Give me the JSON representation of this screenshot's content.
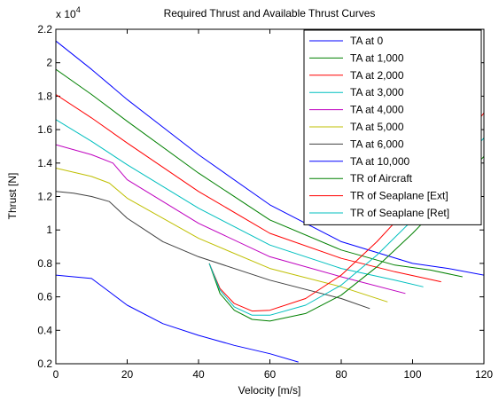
{
  "chart_data": {
    "type": "line",
    "title": "Required Thrust and Available Thrust Curves",
    "xlabel": "Velocity [m/s]",
    "ylabel": "Thrust [N]",
    "y_multiplier_label": "x 10",
    "y_multiplier_exponent": "4",
    "xlim": [
      0,
      120
    ],
    "ylim": [
      0.2,
      2.2
    ],
    "x_ticks": [
      0,
      20,
      40,
      60,
      80,
      100,
      120
    ],
    "y_ticks": [
      0.2,
      0.4,
      0.6,
      0.8,
      1,
      1.2,
      1.4,
      1.6,
      1.8,
      2,
      2.2
    ],
    "x_tick_labels": [
      "0",
      "20",
      "40",
      "60",
      "80",
      "100",
      "120"
    ],
    "y_tick_labels": [
      "0.2",
      "0.4",
      "0.6",
      "0.8",
      "1",
      "1.2",
      "1.4",
      "1.6",
      "1.8",
      "2",
      "2.2"
    ],
    "grid": false,
    "legend_position": "top-right",
    "series": [
      {
        "name": "TA at 0",
        "color": "#0000ff",
        "x": [
          0,
          10,
          20,
          40,
          60,
          80,
          100,
          110,
          120
        ],
        "y": [
          2.13,
          1.96,
          1.78,
          1.45,
          1.15,
          0.93,
          0.8,
          0.77,
          0.73
        ]
      },
      {
        "name": "TA at 1,000",
        "color": "#008000",
        "x": [
          0,
          10,
          20,
          40,
          60,
          80,
          95,
          105,
          114
        ],
        "y": [
          1.96,
          1.81,
          1.65,
          1.34,
          1.06,
          0.88,
          0.79,
          0.76,
          0.72
        ]
      },
      {
        "name": "TA at 2,000",
        "color": "#ff0000",
        "x": [
          0,
          10,
          20,
          40,
          60,
          80,
          95,
          108
        ],
        "y": [
          1.81,
          1.67,
          1.52,
          1.23,
          0.98,
          0.83,
          0.75,
          0.69
        ]
      },
      {
        "name": "TA at 3,000",
        "color": "#00bfbf",
        "x": [
          0,
          10,
          20,
          40,
          60,
          80,
          95,
          103
        ],
        "y": [
          1.66,
          1.53,
          1.39,
          1.13,
          0.91,
          0.77,
          0.7,
          0.66
        ]
      },
      {
        "name": "TA at 4,000",
        "color": "#bf00bf",
        "x": [
          0,
          10,
          16,
          20,
          40,
          60,
          80,
          98
        ],
        "y": [
          1.51,
          1.45,
          1.4,
          1.3,
          1.04,
          0.84,
          0.72,
          0.62
        ]
      },
      {
        "name": "TA at 5,000",
        "color": "#bfbf00",
        "x": [
          0,
          10,
          15,
          20,
          40,
          60,
          80,
          93
        ],
        "y": [
          1.37,
          1.32,
          1.28,
          1.19,
          0.95,
          0.77,
          0.66,
          0.57
        ]
      },
      {
        "name": "TA at 6,000",
        "color": "#404040",
        "x": [
          0,
          5,
          10,
          15,
          20,
          30,
          40,
          60,
          80,
          88
        ],
        "y": [
          1.23,
          1.22,
          1.2,
          1.17,
          1.07,
          0.93,
          0.84,
          0.7,
          0.59,
          0.53
        ]
      },
      {
        "name": "TA at 10,000",
        "color": "#0000ff",
        "x": [
          0,
          5,
          10,
          15,
          20,
          30,
          40,
          50,
          60,
          68
        ],
        "y": [
          0.73,
          0.72,
          0.71,
          0.63,
          0.55,
          0.44,
          0.37,
          0.31,
          0.26,
          0.21
        ]
      },
      {
        "name": "TR of Aircraft",
        "color": "#008000",
        "x": [
          43,
          46,
          50,
          55,
          60,
          70,
          80,
          90,
          100,
          110,
          120
        ],
        "y": [
          0.8,
          0.62,
          0.52,
          0.465,
          0.455,
          0.5,
          0.61,
          0.78,
          0.98,
          1.2,
          1.44
        ]
      },
      {
        "name": "TR of Seaplane [Ext]",
        "color": "#ff0000",
        "x": [
          43,
          46,
          50,
          55,
          60,
          70,
          80,
          90,
          100,
          110,
          120
        ],
        "y": [
          0.8,
          0.65,
          0.56,
          0.515,
          0.52,
          0.59,
          0.73,
          0.93,
          1.16,
          1.42,
          1.7
        ]
      },
      {
        "name": "TR of Seaplane [Ret]",
        "color": "#00bfbf",
        "x": [
          43,
          46,
          50,
          55,
          60,
          70,
          80,
          90,
          100,
          110,
          120
        ],
        "y": [
          0.8,
          0.64,
          0.54,
          0.49,
          0.49,
          0.55,
          0.67,
          0.85,
          1.06,
          1.3,
          1.55
        ]
      }
    ]
  }
}
